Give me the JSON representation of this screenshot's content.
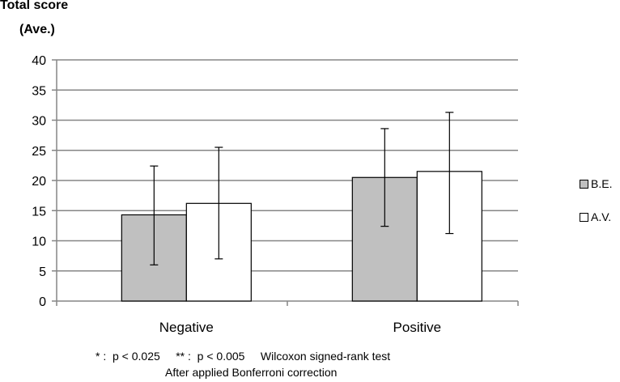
{
  "chart_data": {
    "type": "bar",
    "ylabel_lines": [
      "Total score",
      "(Ave.)"
    ],
    "categories": [
      "Negative",
      "Positive"
    ],
    "ylim": [
      0,
      40
    ],
    "yticks": [
      0,
      5,
      10,
      15,
      20,
      25,
      30,
      35,
      40
    ],
    "grid": true,
    "legend_position": "right",
    "series": [
      {
        "name": "B.E.",
        "color": "#c0c0c0",
        "values": [
          14.3,
          20.5
        ],
        "err_low": [
          6.0,
          12.4
        ],
        "err_high": [
          22.4,
          28.6
        ]
      },
      {
        "name": "A.V.",
        "color": "#ffffff",
        "values": [
          16.2,
          21.5
        ],
        "err_low": [
          7.0,
          11.2
        ],
        "err_high": [
          25.5,
          31.3
        ]
      }
    ],
    "footnotes": [
      "* :  p < 0.025     ** :  p < 0.005     Wilcoxon signed-rank test",
      "After applied Bonferroni correction"
    ]
  }
}
